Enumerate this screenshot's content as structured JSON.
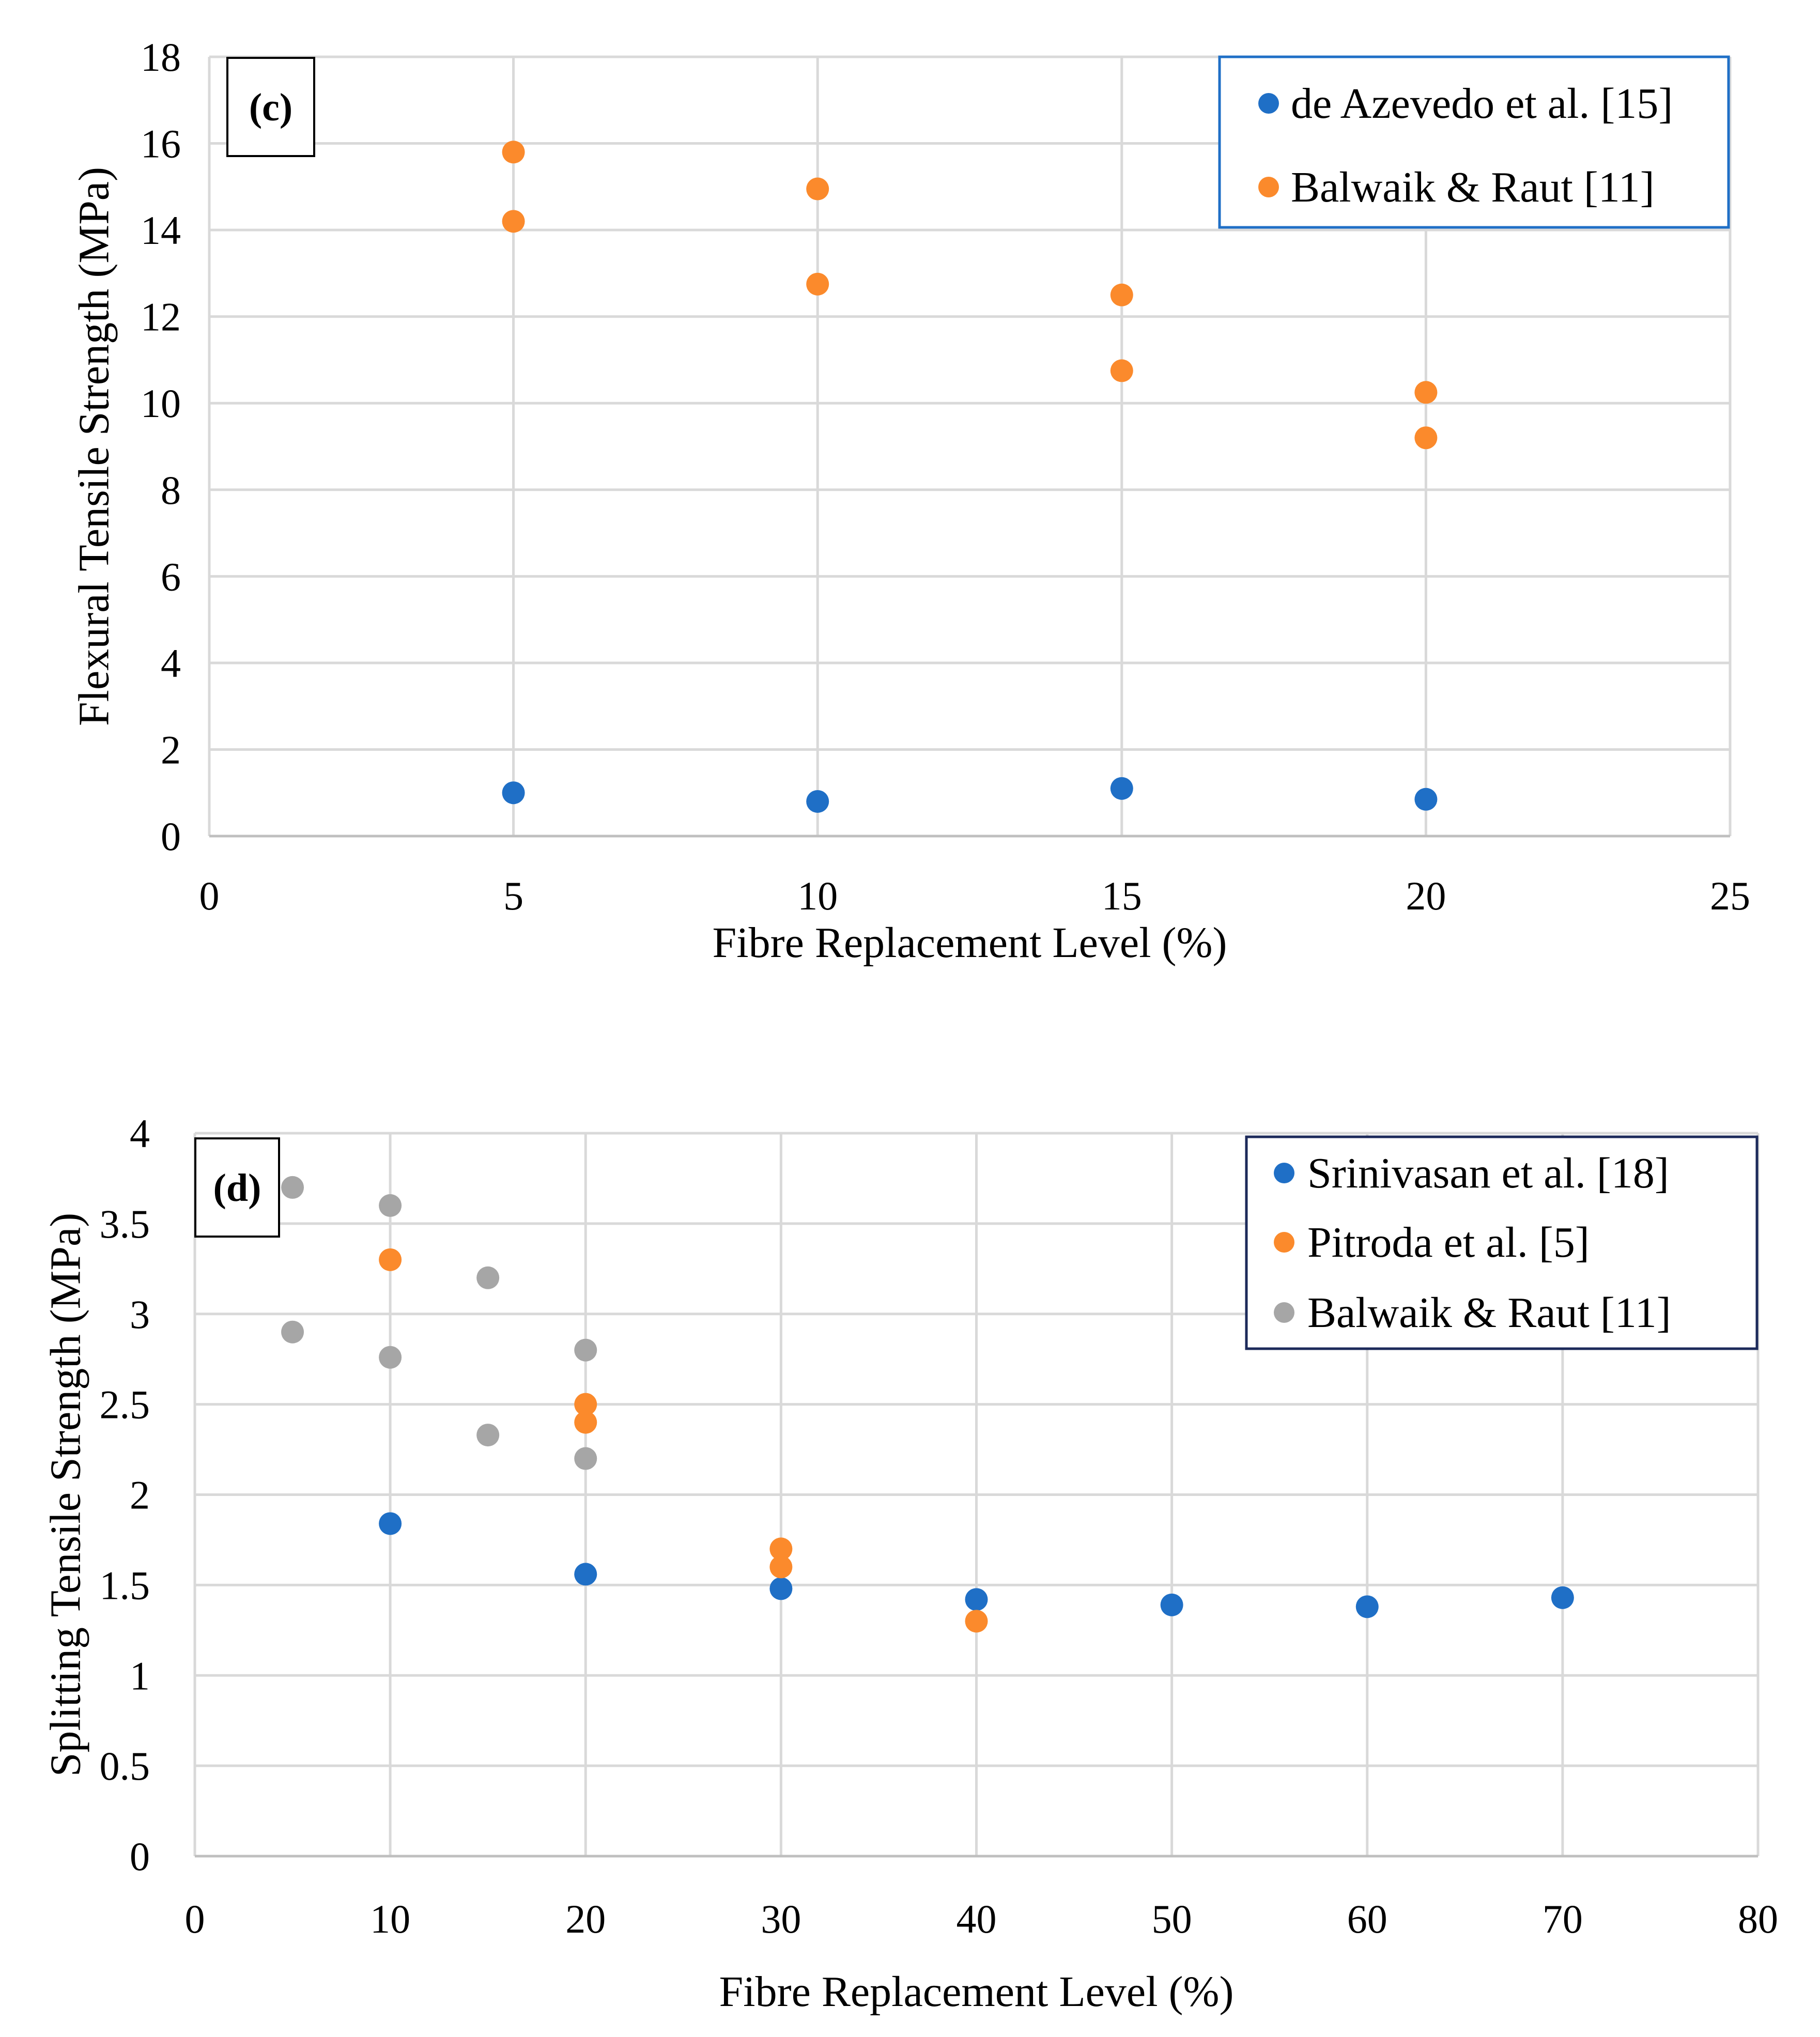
{
  "colors": {
    "blue": "#1f6fc6",
    "orange": "#fb8a2c",
    "gray": "#a6a6a6",
    "grid": "#d9d9d9"
  },
  "chart_data": [
    {
      "type": "scatter",
      "panel_label": "(c)",
      "xlabel": "Fibre Replacement Level (%)",
      "ylabel": "Flexural  Tensile Strength (MPa)",
      "xlim": [
        0,
        25
      ],
      "ylim": [
        0,
        18
      ],
      "xticks": [
        0,
        5,
        10,
        15,
        20,
        25
      ],
      "yticks": [
        0,
        2,
        4,
        6,
        8,
        10,
        12,
        14,
        16,
        18
      ],
      "grid": true,
      "legend_position": "top-right",
      "series": [
        {
          "name": "de Azevedo et al. [15]",
          "color": "#1f6fc6",
          "points": [
            [
              5,
              1.0
            ],
            [
              10,
              0.8
            ],
            [
              15,
              1.1
            ],
            [
              20,
              0.85
            ]
          ]
        },
        {
          "name": "Balwaik & Raut [11]",
          "color": "#fb8a2c",
          "points": [
            [
              5,
              15.8
            ],
            [
              5,
              14.2
            ],
            [
              10,
              14.95
            ],
            [
              10,
              12.75
            ],
            [
              15,
              12.5
            ],
            [
              15,
              10.75
            ],
            [
              20,
              10.25
            ],
            [
              20,
              9.2
            ]
          ]
        }
      ]
    },
    {
      "type": "scatter",
      "panel_label": "(d)",
      "xlabel": "Fibre Replacement Level (%)",
      "ylabel": "Splitting Tensile Strength (MPa)",
      "xlim": [
        0,
        80
      ],
      "ylim": [
        0,
        4
      ],
      "xticks": [
        0,
        10,
        20,
        30,
        40,
        50,
        60,
        70,
        80
      ],
      "yticks": [
        0,
        0.5,
        1,
        1.5,
        2,
        2.5,
        3,
        3.5,
        4
      ],
      "grid": true,
      "legend_position": "top-right",
      "series": [
        {
          "name": "Srinivasan et al. [18]",
          "color": "#1f6fc6",
          "points": [
            [
              10,
              1.84
            ],
            [
              20,
              1.56
            ],
            [
              30,
              1.48
            ],
            [
              40,
              1.42
            ],
            [
              50,
              1.39
            ],
            [
              60,
              1.38
            ],
            [
              70,
              1.43
            ]
          ]
        },
        {
          "name": "Pitroda  et al. [5]",
          "color": "#fb8a2c",
          "points": [
            [
              10,
              3.3
            ],
            [
              20,
              2.5
            ],
            [
              20,
              2.4
            ],
            [
              30,
              1.7
            ],
            [
              30,
              1.6
            ],
            [
              40,
              1.3
            ]
          ]
        },
        {
          "name": "Balwaik & Raut [11]",
          "color": "#a6a6a6",
          "points": [
            [
              5,
              3.7
            ],
            [
              5,
              2.9
            ],
            [
              10,
              3.6
            ],
            [
              10,
              2.76
            ],
            [
              15,
              3.2
            ],
            [
              15,
              2.33
            ],
            [
              20,
              2.8
            ],
            [
              20,
              2.2
            ]
          ]
        }
      ]
    }
  ]
}
